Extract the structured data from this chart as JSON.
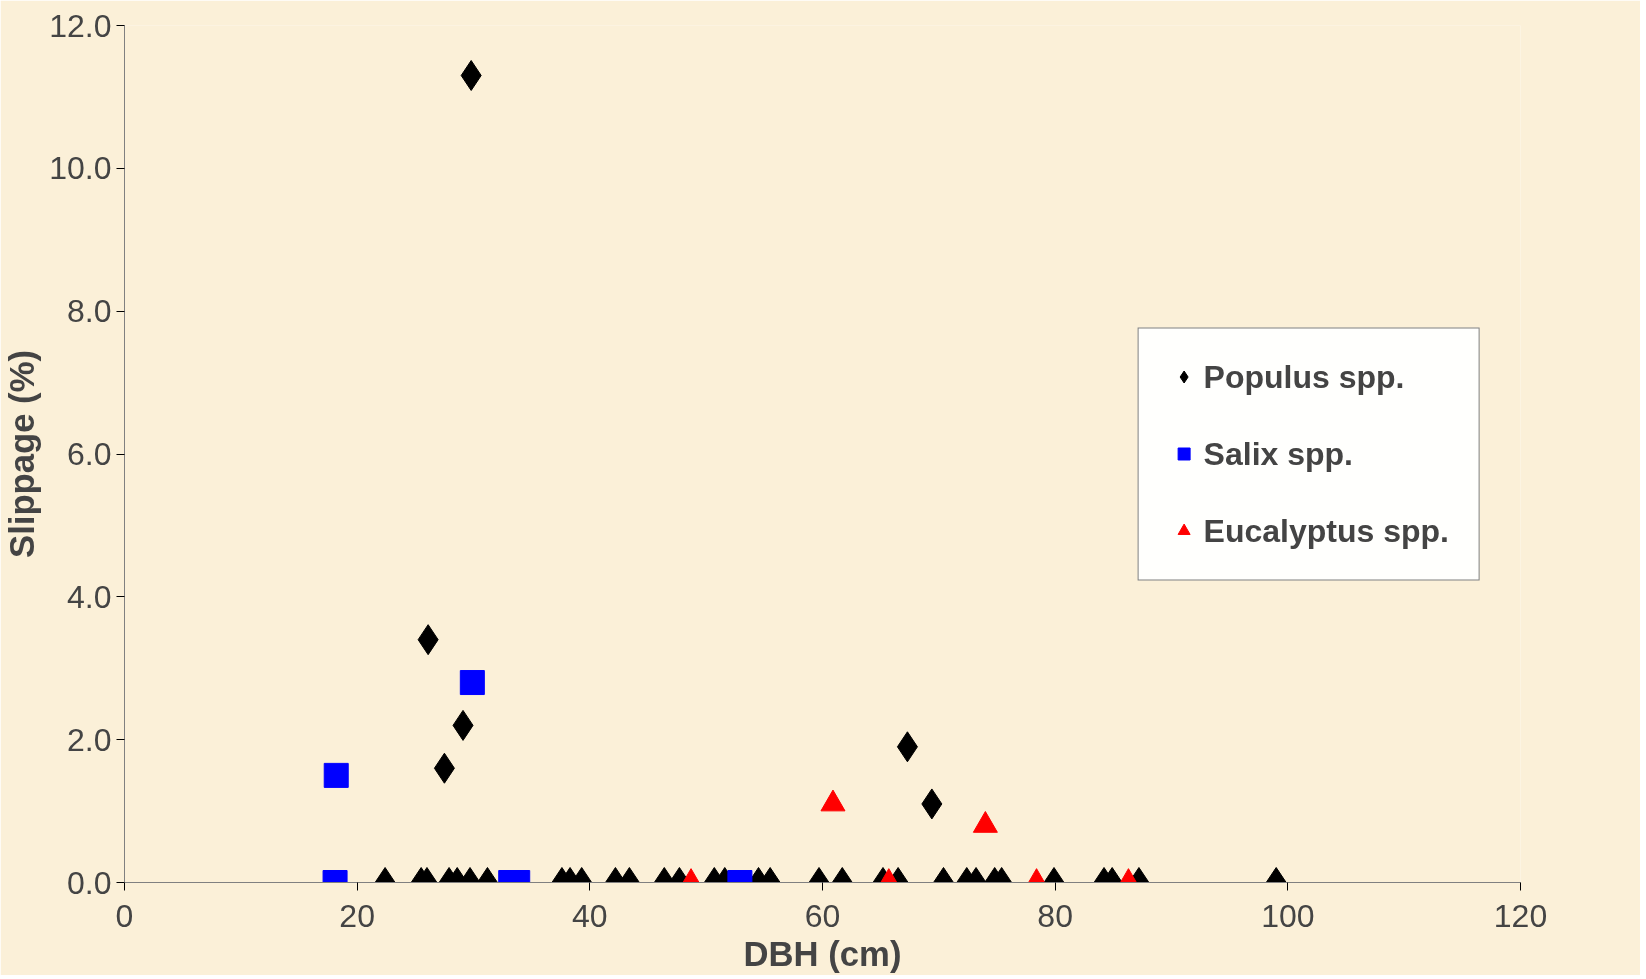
{
  "chart_data": {
    "type": "scatter",
    "xlabel": "DBH (cm)",
    "ylabel": "Slippage (%)",
    "xlim": [
      0,
      120
    ],
    "xticks": [
      0,
      20,
      40,
      60,
      80,
      100,
      120
    ],
    "ylim": [
      0,
      12
    ],
    "yticks": [
      {
        "value": 0,
        "label": "0.0"
      },
      {
        "value": 2,
        "label": "2.0"
      },
      {
        "value": 4,
        "label": "4.0"
      },
      {
        "value": 6,
        "label": "6.0"
      },
      {
        "value": 8,
        "label": "8.0"
      },
      {
        "value": 10,
        "label": "10.0"
      },
      {
        "value": 12,
        "label": "12.0"
      }
    ],
    "grid": false,
    "legend": "right",
    "series": [
      {
        "name": "Populus spp.",
        "color": "#000000",
        "marker": "diamond",
        "x": [
          26.1,
          29.8,
          27.5,
          29.1,
          67.3,
          69.4,
          22.4,
          25.5,
          26.0,
          27.9,
          28.6,
          29.7,
          31.2,
          37.6,
          38.3,
          39.3,
          42.2,
          43.4,
          46.4,
          47.7,
          50.7,
          51.6,
          54.5,
          55.5,
          59.7,
          61.7,
          65.2,
          66.5,
          70.4,
          72.4,
          73.2,
          74.8,
          75.4,
          79.9,
          84.2,
          84.9,
          87.2,
          99.0
        ],
        "values": [
          3.4,
          11.3,
          1.6,
          2.2,
          1.9,
          1.1,
          0,
          0,
          0,
          0,
          0,
          0,
          0,
          0,
          0,
          0,
          0,
          0,
          0,
          0,
          0,
          0,
          0,
          0,
          0,
          0,
          0,
          0,
          0,
          0,
          0,
          0,
          0,
          0,
          0,
          0,
          0,
          0
        ]
      },
      {
        "name": "Salix spp.",
        "color": "#0000ff",
        "marker": "square",
        "x": [
          18.2,
          18.1,
          29.9,
          33.2,
          33.8,
          52.9
        ],
        "values": [
          1.5,
          0,
          2.8,
          0,
          0,
          0
        ]
      },
      {
        "name": "Eucalyptus spp.",
        "color": "#ff0000",
        "marker": "triangle",
        "x": [
          48.7,
          60.9,
          65.7,
          74.0,
          78.4,
          86.3
        ],
        "values": [
          0,
          1.1,
          0,
          0.8,
          0,
          0
        ]
      }
    ]
  }
}
